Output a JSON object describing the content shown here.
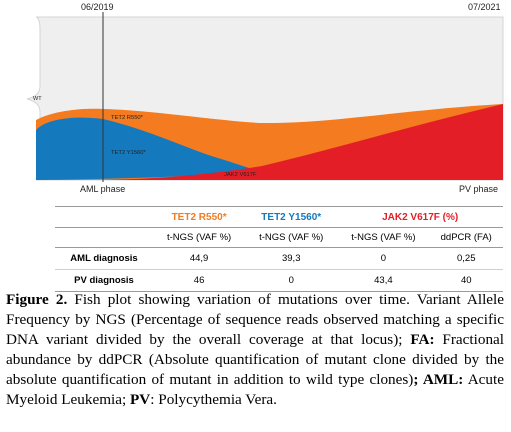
{
  "chart_data": {
    "type": "area",
    "x_start_label": "06/2019",
    "x_end_label": "07/2021",
    "phase_start_label": "AML phase",
    "phase_end_label": "PV phase",
    "series": [
      {
        "name": "WT",
        "color": "#f0efef"
      },
      {
        "name": "TET2 R550*",
        "color": "#f47b20",
        "aml_vaf": 44.9,
        "pv_vaf": 46
      },
      {
        "name": "TET2 Y1560*",
        "color": "#1479bd",
        "aml_vaf": 39.3,
        "pv_vaf": 0
      },
      {
        "name": "JAK2 V617F",
        "color": "#e41e26",
        "aml_vaf": 0,
        "pv_vaf": 43.4
      }
    ]
  },
  "table": {
    "headers": [
      {
        "text": "",
        "color": "#000000"
      },
      {
        "text": "TET2 R550*",
        "color": "#f47b20",
        "span": 1
      },
      {
        "text": "TET2 Y1560*",
        "color": "#1479bd",
        "span": 1
      },
      {
        "text": "JAK2 V617F (%)",
        "color": "#e41e26",
        "span": 2
      }
    ],
    "subheaders": [
      "",
      "t-NGS (VAF %)",
      "t-NGS (VAF %)",
      "t-NGS (VAF %)",
      "ddPCR (FA)"
    ],
    "rows": [
      [
        "AML diagnosis",
        "44,9",
        "39,3",
        "0",
        "0,25"
      ],
      [
        "PV diagnosis",
        "46",
        "0",
        "43,4",
        "40"
      ]
    ]
  },
  "caption": {
    "fig_label": "Figure 2.",
    "p1": " Fish plot showing variation of mutations over time. Variant Allele Frequency by NGS (Percentage of sequence reads observed matching a specific DNA variant divided by the overall coverage at that locus); ",
    "fa_label": "FA:",
    "p2": " Fractional abundance by ddPCR (Absolute quantification of mutant clone divided by the absolute quantification of mutant in addition to wild type clones)",
    "aml_label": "; AML:",
    "p3": " Acute Myeloid Leukemia; ",
    "pv_label": "PV",
    "p4": ": Polycythemia Vera."
  }
}
